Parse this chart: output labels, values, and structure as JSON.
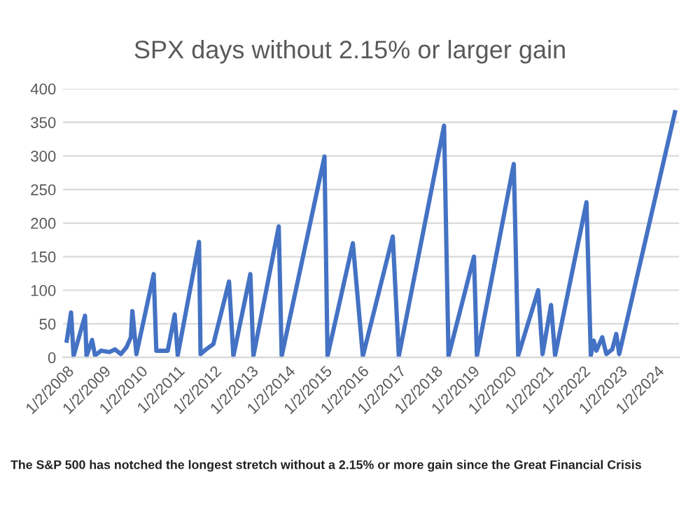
{
  "chart_data": {
    "type": "line",
    "title": "SPX days without 2.15% or larger gain",
    "x": [
      "2008-01-02",
      "2008-02-14",
      "2008-03-10",
      "2008-07-01",
      "2008-07-16",
      "2008-09-09",
      "2008-10-08",
      "2008-12-06",
      "2009-02-28",
      "2009-04-23",
      "2009-06-21",
      "2009-08-15",
      "2009-09-28",
      "2009-10-13",
      "2009-11-22",
      "2010-05-12",
      "2010-06-07",
      "2010-09-28",
      "2010-12-06",
      "2011-01-05",
      "2011-08-04",
      "2011-08-19",
      "2011-10-13",
      "2011-12-24",
      "2012-05-27",
      "2012-07-09",
      "2012-12-24",
      "2013-01-23",
      "2013-10-01",
      "2013-10-30",
      "2014-12-28",
      "2015-01-27",
      "2015-10-05",
      "2016-01-12",
      "2016-11-03",
      "2017-01-02",
      "2018-03-26",
      "2018-05-09",
      "2019-01-16",
      "2019-02-14",
      "2020-02-14",
      "2020-03-29",
      "2020-10-13",
      "2020-11-25",
      "2021-02-17",
      "2021-03-29",
      "2022-02-03",
      "2022-03-18",
      "2022-04-16",
      "2022-05-12",
      "2022-07-09",
      "2022-08-19",
      "2022-10-16",
      "2022-11-25",
      "2022-12-24",
      "2024-06-28"
    ],
    "series": [
      {
        "color": "#4472c4",
        "values": [
          25,
          67,
          2,
          62,
          2,
          26,
          3,
          10,
          8,
          12,
          5,
          15,
          30,
          69,
          5,
          124,
          10,
          10,
          64,
          3,
          172,
          5,
          12,
          20,
          113,
          2,
          124,
          2,
          195,
          2,
          299,
          2,
          170,
          2,
          180,
          2,
          345,
          2,
          150,
          2,
          288,
          3,
          100,
          5,
          78,
          3,
          231,
          3,
          25,
          10,
          30,
          5,
          12,
          35,
          5,
          365
        ]
      }
    ],
    "xlim": [
      "2007-11-26",
      "2024-08-07"
    ],
    "xticks": [
      {
        "value": "2008-01-02",
        "label": "1/2/2008"
      },
      {
        "value": "2009-01-02",
        "label": "1/2/2009"
      },
      {
        "value": "2010-01-02",
        "label": "1/2/2010"
      },
      {
        "value": "2011-01-02",
        "label": "1/2/2011"
      },
      {
        "value": "2012-01-02",
        "label": "1/2/2012"
      },
      {
        "value": "2013-01-02",
        "label": "1/2/2013"
      },
      {
        "value": "2014-01-02",
        "label": "1/2/2014"
      },
      {
        "value": "2015-01-02",
        "label": "1/2/2015"
      },
      {
        "value": "2016-01-02",
        "label": "1/2/2016"
      },
      {
        "value": "2017-01-02",
        "label": "1/2/2017"
      },
      {
        "value": "2018-01-02",
        "label": "1/2/2018"
      },
      {
        "value": "2019-01-02",
        "label": "1/2/2019"
      },
      {
        "value": "2020-01-02",
        "label": "1/2/2020"
      },
      {
        "value": "2021-01-02",
        "label": "1/2/2021"
      },
      {
        "value": "2022-01-02",
        "label": "1/2/2022"
      },
      {
        "value": "2023-01-02",
        "label": "1/2/2023"
      },
      {
        "value": "2024-01-02",
        "label": "1/2/2024"
      }
    ],
    "ylim": [
      0,
      400
    ],
    "yticks": [
      0,
      50,
      100,
      150,
      200,
      250,
      300,
      350,
      400
    ],
    "grid": "y",
    "line_style": "solid",
    "marker": "none",
    "annotations": [
      "The S&P 500 has notched the longest stretch without a 2.15% or more gain since the Great Financial Crisis"
    ]
  }
}
